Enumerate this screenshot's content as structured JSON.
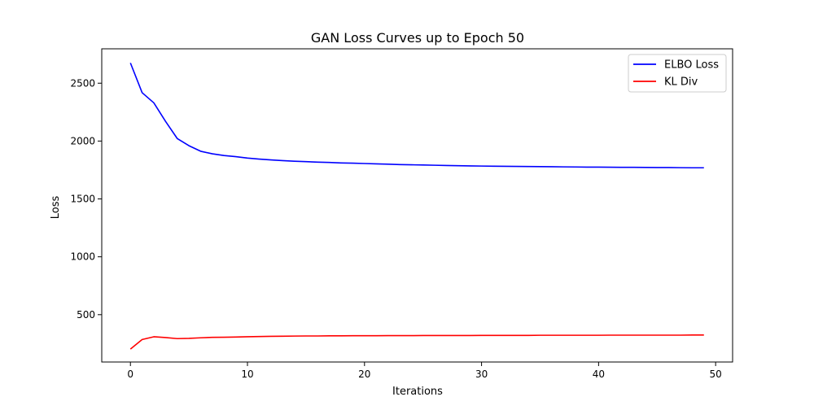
{
  "chart_data": {
    "type": "line",
    "title": "GAN Loss Curves up to Epoch 50",
    "xlabel": "Iterations",
    "ylabel": "Loss",
    "xlim": [
      -2.45,
      51.45
    ],
    "ylim": [
      91,
      2797
    ],
    "x_ticks": [
      0,
      10,
      20,
      30,
      40,
      50
    ],
    "y_ticks": [
      500,
      1000,
      1500,
      2000,
      2500
    ],
    "grid": false,
    "legend_position": "top-right",
    "x": [
      0,
      1,
      2,
      3,
      4,
      5,
      6,
      7,
      8,
      9,
      10,
      11,
      12,
      13,
      14,
      15,
      16,
      17,
      18,
      19,
      20,
      21,
      22,
      23,
      24,
      25,
      26,
      27,
      28,
      29,
      30,
      31,
      32,
      33,
      34,
      35,
      36,
      37,
      38,
      39,
      40,
      41,
      42,
      43,
      44,
      45,
      46,
      47,
      48,
      49
    ],
    "series": [
      {
        "name": "ELBO Loss",
        "color": "#0000ff",
        "values": [
          2675,
          2418,
          2330,
          2170,
          2022,
          1960,
          1912,
          1890,
          1875,
          1865,
          1853,
          1844,
          1837,
          1831,
          1826,
          1822,
          1818,
          1815,
          1811,
          1809,
          1806,
          1803,
          1800,
          1797,
          1795,
          1793,
          1791,
          1789,
          1787,
          1785,
          1784,
          1783,
          1782,
          1781,
          1780,
          1779,
          1778,
          1777,
          1776,
          1775,
          1775,
          1774,
          1773,
          1773,
          1772,
          1771,
          1771,
          1770,
          1769,
          1769
        ]
      },
      {
        "name": "KL Div",
        "color": "#ff0000",
        "values": [
          203,
          285,
          309,
          302,
          293,
          295,
          300,
          304,
          305,
          307,
          309,
          311,
          313,
          314,
          315,
          316,
          316,
          317,
          317,
          318,
          318,
          318,
          319,
          319,
          319,
          320,
          320,
          320,
          320,
          320,
          321,
          321,
          321,
          321,
          321,
          322,
          322,
          322,
          322,
          322,
          322,
          323,
          323,
          323,
          323,
          323,
          323,
          323,
          324,
          324
        ]
      }
    ]
  }
}
